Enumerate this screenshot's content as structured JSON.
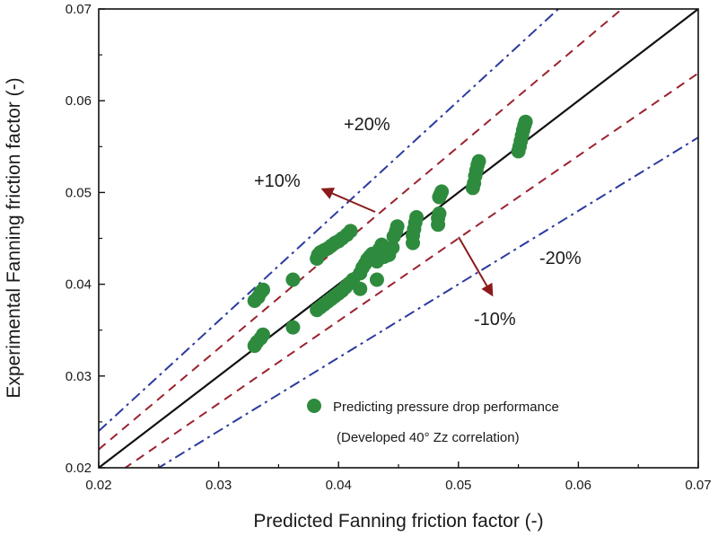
{
  "chart_data": {
    "type": "scatter",
    "xlabel": "Predicted Fanning friction factor (-)",
    "ylabel": "Experimental Fanning friction factor (-)",
    "xlim": [
      0.02,
      0.07
    ],
    "ylim": [
      0.02,
      0.07
    ],
    "x_ticks": [
      "0.02",
      "0.03",
      "0.04",
      "0.05",
      "0.06",
      "0.07"
    ],
    "y_ticks": [
      "0.02",
      "0.03",
      "0.04",
      "0.05",
      "0.06",
      "0.07"
    ],
    "grid": false,
    "legend": {
      "placement": "bottom-right",
      "lines": [
        "Predicting pressure drop performance",
        "(Developed 40° Zz correlation)"
      ],
      "marker_color": "#2e8b3e"
    },
    "reference_lines": [
      {
        "name": "parity",
        "slope": 1.0,
        "style": "solid",
        "color": "#111111"
      },
      {
        "name": "+10%",
        "slope": 1.1,
        "style": "dashed",
        "color": "#9b2230"
      },
      {
        "name": "-10%",
        "slope": 0.9,
        "style": "dashed",
        "color": "#9b2230"
      },
      {
        "name": "+20%",
        "slope": 1.2,
        "style": "dashdot",
        "color": "#2b3a9e"
      },
      {
        "name": "-20%",
        "slope": 0.8,
        "style": "dashdot",
        "color": "#2b3a9e"
      }
    ],
    "annotations": {
      "plus20": "+20%",
      "plus10": "+10%",
      "minus20": "-20%",
      "minus10": "-10%",
      "arrow_color": "#8b1a1a"
    },
    "series": [
      {
        "color": "#2e8b3e",
        "points": [
          [
            0.033,
            0.0382
          ],
          [
            0.0333,
            0.0386
          ],
          [
            0.0335,
            0.0391
          ],
          [
            0.0337,
            0.0394
          ],
          [
            0.033,
            0.0333
          ],
          [
            0.0332,
            0.0337
          ],
          [
            0.0335,
            0.0341
          ],
          [
            0.0337,
            0.0345
          ],
          [
            0.0362,
            0.0353
          ],
          [
            0.0362,
            0.0405
          ],
          [
            0.0382,
            0.0428
          ],
          [
            0.0383,
            0.0432
          ],
          [
            0.0385,
            0.0435
          ],
          [
            0.0388,
            0.0437
          ],
          [
            0.0391,
            0.0439
          ],
          [
            0.0394,
            0.0442
          ],
          [
            0.0397,
            0.0445
          ],
          [
            0.04,
            0.0447
          ],
          [
            0.0403,
            0.045
          ],
          [
            0.0407,
            0.0454
          ],
          [
            0.041,
            0.0458
          ],
          [
            0.0382,
            0.0372
          ],
          [
            0.0385,
            0.0375
          ],
          [
            0.0388,
            0.0378
          ],
          [
            0.0391,
            0.0381
          ],
          [
            0.0394,
            0.0384
          ],
          [
            0.0397,
            0.0387
          ],
          [
            0.04,
            0.039
          ],
          [
            0.0403,
            0.0393
          ],
          [
            0.0406,
            0.0397
          ],
          [
            0.0409,
            0.0401
          ],
          [
            0.0412,
            0.0405
          ],
          [
            0.0418,
            0.0395
          ],
          [
            0.0418,
            0.0412
          ],
          [
            0.042,
            0.0418
          ],
          [
            0.0422,
            0.0422
          ],
          [
            0.0424,
            0.0427
          ],
          [
            0.0426,
            0.043
          ],
          [
            0.0428,
            0.0433
          ],
          [
            0.0432,
            0.0405
          ],
          [
            0.0432,
            0.0425
          ],
          [
            0.0434,
            0.0438
          ],
          [
            0.0436,
            0.0443
          ],
          [
            0.0438,
            0.043
          ],
          [
            0.0442,
            0.0432
          ],
          [
            0.0445,
            0.044
          ],
          [
            0.0446,
            0.0452
          ],
          [
            0.0448,
            0.0458
          ],
          [
            0.0449,
            0.0463
          ],
          [
            0.0462,
            0.0445
          ],
          [
            0.0462,
            0.0453
          ],
          [
            0.0463,
            0.046
          ],
          [
            0.0464,
            0.0467
          ],
          [
            0.0465,
            0.0473
          ],
          [
            0.0483,
            0.0465
          ],
          [
            0.0483,
            0.0472
          ],
          [
            0.0484,
            0.0477
          ],
          [
            0.0484,
            0.0495
          ],
          [
            0.0485,
            0.0498
          ],
          [
            0.0486,
            0.0501
          ],
          [
            0.0512,
            0.0505
          ],
          [
            0.0513,
            0.051
          ],
          [
            0.0514,
            0.0518
          ],
          [
            0.0515,
            0.0524
          ],
          [
            0.0516,
            0.053
          ],
          [
            0.0517,
            0.0534
          ],
          [
            0.055,
            0.0545
          ],
          [
            0.0551,
            0.055
          ],
          [
            0.0552,
            0.0556
          ],
          [
            0.0553,
            0.0562
          ],
          [
            0.0554,
            0.0568
          ],
          [
            0.0555,
            0.0573
          ],
          [
            0.0556,
            0.0577
          ]
        ]
      }
    ]
  }
}
